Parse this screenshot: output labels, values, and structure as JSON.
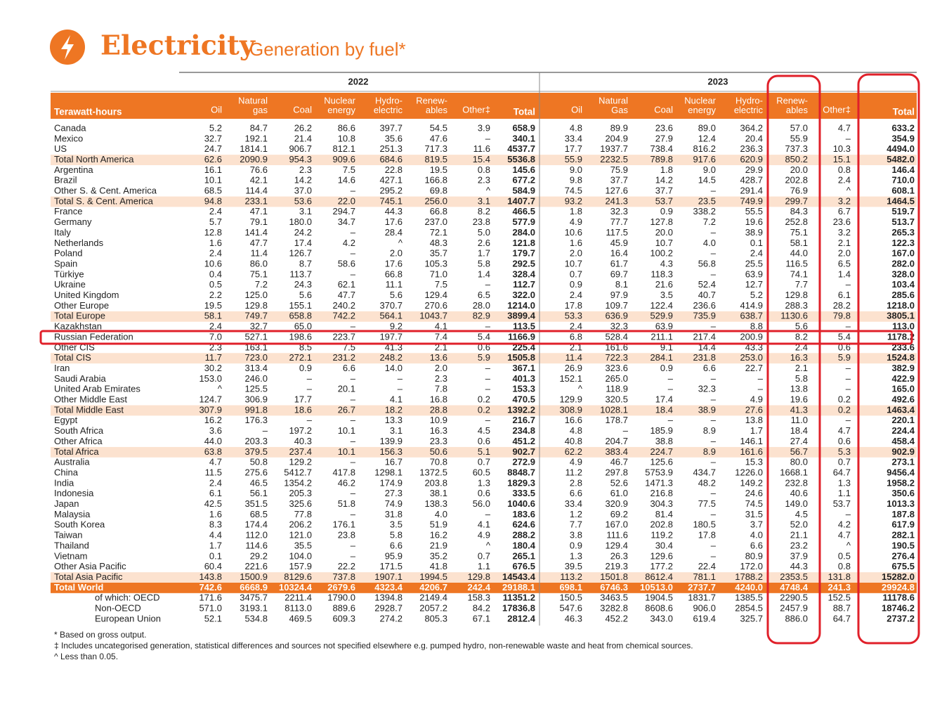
{
  "header": {
    "title": "Electricity",
    "subtitle": "Generation by fuel*"
  },
  "table": {
    "unit_label": "Terawatt-hours",
    "years": [
      "2022",
      "2023"
    ],
    "columns": [
      [
        "Oil"
      ],
      [
        "Natural",
        "gas"
      ],
      [
        "Coal"
      ],
      [
        "Nuclear",
        "energy"
      ],
      [
        "Hydro-",
        "electric"
      ],
      [
        "Renew-",
        "ables"
      ],
      [
        "Other‡"
      ],
      [
        "Total"
      ],
      [
        "Oil"
      ],
      [
        "Natural",
        "Gas"
      ],
      [
        "Coal"
      ],
      [
        "Nuclear",
        "energy"
      ],
      [
        "Hydro-",
        "electric"
      ],
      [
        "Renew-",
        "ables"
      ],
      [
        "Other‡"
      ],
      [
        "Total"
      ]
    ],
    "rows": [
      {
        "label": "Canada",
        "values": [
          "5.2",
          "84.7",
          "26.2",
          "86.6",
          "397.7",
          "54.5",
          "3.9",
          "658.9",
          "4.8",
          "89.9",
          "23.6",
          "89.0",
          "364.2",
          "57.0",
          "4.7",
          "633.2"
        ]
      },
      {
        "label": "Mexico",
        "values": [
          "32.7",
          "192.1",
          "21.4",
          "10.8",
          "35.6",
          "47.6",
          "–",
          "340.1",
          "33.4",
          "204.9",
          "27.9",
          "12.4",
          "20.4",
          "55.9",
          "–",
          "354.9"
        ]
      },
      {
        "label": "US",
        "values": [
          "24.7",
          "1814.1",
          "906.7",
          "812.1",
          "251.3",
          "717.3",
          "11.6",
          "4537.7",
          "17.7",
          "1937.7",
          "738.4",
          "816.2",
          "236.3",
          "737.3",
          "10.3",
          "4494.0"
        ]
      },
      {
        "label": "Total North America",
        "style": "total",
        "values": [
          "62.6",
          "2090.9",
          "954.3",
          "909.6",
          "684.6",
          "819.5",
          "15.4",
          "5536.8",
          "55.9",
          "2232.5",
          "789.8",
          "917.6",
          "620.9",
          "850.2",
          "15.1",
          "5482.0"
        ]
      },
      {
        "label": "Argentina",
        "values": [
          "16.1",
          "76.6",
          "2.3",
          "7.5",
          "22.8",
          "19.5",
          "0.8",
          "145.6",
          "9.0",
          "75.9",
          "1.8",
          "9.0",
          "29.9",
          "20.0",
          "0.8",
          "146.4"
        ]
      },
      {
        "label": "Brazil",
        "values": [
          "10.1",
          "42.1",
          "14.2",
          "14.6",
          "427.1",
          "166.8",
          "2.3",
          "677.2",
          "9.8",
          "37.7",
          "14.2",
          "14.5",
          "428.7",
          "202.8",
          "2.4",
          "710.0"
        ]
      },
      {
        "label": "Other S. & Cent. America",
        "values": [
          "68.5",
          "114.4",
          "37.0",
          "–",
          "295.2",
          "69.8",
          "^",
          "584.9",
          "74.5",
          "127.6",
          "37.7",
          "–",
          "291.4",
          "76.9",
          "^",
          "608.1"
        ]
      },
      {
        "label": "Total S. & Cent. America",
        "style": "total",
        "values": [
          "94.8",
          "233.1",
          "53.6",
          "22.0",
          "745.1",
          "256.0",
          "3.1",
          "1407.7",
          "93.2",
          "241.3",
          "53.7",
          "23.5",
          "749.9",
          "299.7",
          "3.2",
          "1464.5"
        ]
      },
      {
        "label": "France",
        "values": [
          "2.4",
          "47.1",
          "3.1",
          "294.7",
          "44.3",
          "66.8",
          "8.2",
          "466.5",
          "1.8",
          "32.3",
          "0.9",
          "338.2",
          "55.5",
          "84.3",
          "6.7",
          "519.7"
        ]
      },
      {
        "label": "Germany",
        "values": [
          "5.7",
          "79.1",
          "180.0",
          "34.7",
          "17.6",
          "237.0",
          "23.8",
          "577.9",
          "4.9",
          "77.7",
          "127.8",
          "7.2",
          "19.6",
          "252.8",
          "23.6",
          "513.7"
        ]
      },
      {
        "label": "Italy",
        "values": [
          "12.8",
          "141.4",
          "24.2",
          "–",
          "28.4",
          "72.1",
          "5.0",
          "284.0",
          "10.6",
          "117.5",
          "20.0",
          "–",
          "38.9",
          "75.1",
          "3.2",
          "265.3"
        ]
      },
      {
        "label": "Netherlands",
        "values": [
          "1.6",
          "47.7",
          "17.4",
          "4.2",
          "^",
          "48.3",
          "2.6",
          "121.8",
          "1.6",
          "45.9",
          "10.7",
          "4.0",
          "0.1",
          "58.1",
          "2.1",
          "122.3"
        ]
      },
      {
        "label": "Poland",
        "values": [
          "2.4",
          "11.4",
          "126.7",
          "–",
          "2.0",
          "35.7",
          "1.7",
          "179.7",
          "2.0",
          "16.4",
          "100.2",
          "–",
          "2.4",
          "44.0",
          "2.0",
          "167.0"
        ]
      },
      {
        "label": "Spain",
        "values": [
          "10.6",
          "86.0",
          "8.7",
          "58.6",
          "17.6",
          "105.3",
          "5.8",
          "292.5",
          "10.7",
          "61.7",
          "4.3",
          "56.8",
          "25.5",
          "116.5",
          "6.5",
          "282.0"
        ]
      },
      {
        "label": "Türkiye",
        "values": [
          "0.4",
          "75.1",
          "113.7",
          "–",
          "66.8",
          "71.0",
          "1.4",
          "328.4",
          "0.7",
          "69.7",
          "118.3",
          "–",
          "63.9",
          "74.1",
          "1.4",
          "328.0"
        ]
      },
      {
        "label": "Ukraine",
        "values": [
          "0.5",
          "7.2",
          "24.3",
          "62.1",
          "11.1",
          "7.5",
          "–",
          "112.7",
          "0.9",
          "8.1",
          "21.6",
          "52.4",
          "12.7",
          "7.7",
          "–",
          "103.4"
        ]
      },
      {
        "label": "United Kingdom",
        "values": [
          "2.2",
          "125.0",
          "5.6",
          "47.7",
          "5.6",
          "129.4",
          "6.5",
          "322.0",
          "2.4",
          "97.9",
          "3.5",
          "40.7",
          "5.2",
          "129.8",
          "6.1",
          "285.6"
        ]
      },
      {
        "label": "Other Europe",
        "values": [
          "19.5",
          "129.8",
          "155.1",
          "240.2",
          "370.7",
          "270.6",
          "28.0",
          "1214.0",
          "17.8",
          "109.7",
          "122.4",
          "236.6",
          "414.9",
          "288.3",
          "28.2",
          "1218.0"
        ]
      },
      {
        "label": "Total Europe",
        "style": "total",
        "values": [
          "58.1",
          "749.7",
          "658.8",
          "742.2",
          "564.1",
          "1043.7",
          "82.9",
          "3899.4",
          "53.3",
          "636.9",
          "529.9",
          "735.9",
          "638.7",
          "1130.6",
          "79.8",
          "3805.1"
        ]
      },
      {
        "label": "Kazakhstan",
        "values": [
          "2.4",
          "32.7",
          "65.0",
          "–",
          "9.2",
          "4.1",
          "–",
          "113.5",
          "2.4",
          "32.3",
          "63.9",
          "–",
          "8.8",
          "5.6",
          "–",
          "113.0"
        ]
      },
      {
        "label": "Russian Federation",
        "values": [
          "7.0",
          "527.1",
          "198.6",
          "223.7",
          "197.7",
          "7.4",
          "5.4",
          "1166.9",
          "6.8",
          "528.4",
          "211.1",
          "217.4",
          "200.9",
          "8.2",
          "5.4",
          "1178.2"
        ]
      },
      {
        "label": "Other CIS",
        "values": [
          "2.3",
          "163.1",
          "8.5",
          "7.5",
          "41.3",
          "2.1",
          "0.6",
          "225.4",
          "2.1",
          "161.6",
          "9.1",
          "14.4",
          "43.3",
          "2.4",
          "0.6",
          "233.6"
        ]
      },
      {
        "label": "Total CIS",
        "style": "total",
        "values": [
          "11.7",
          "723.0",
          "272.1",
          "231.2",
          "248.2",
          "13.6",
          "5.9",
          "1505.8",
          "11.4",
          "722.3",
          "284.1",
          "231.8",
          "253.0",
          "16.3",
          "5.9",
          "1524.8"
        ]
      },
      {
        "label": "Iran",
        "values": [
          "30.2",
          "313.4",
          "0.9",
          "6.6",
          "14.0",
          "2.0",
          "–",
          "367.1",
          "26.9",
          "323.6",
          "0.9",
          "6.6",
          "22.7",
          "2.1",
          "–",
          "382.9"
        ]
      },
      {
        "label": "Saudi Arabia",
        "values": [
          "153.0",
          "246.0",
          "–",
          "–",
          "–",
          "2.3",
          "–",
          "401.3",
          "152.1",
          "265.0",
          "–",
          "–",
          "–",
          "5.8",
          "–",
          "422.9"
        ]
      },
      {
        "label": "United Arab Emirates",
        "values": [
          "^",
          "125.5",
          "–",
          "20.1",
          "–",
          "7.8",
          "–",
          "153.3",
          "^",
          "118.9",
          "–",
          "32.3",
          "–",
          "13.8",
          "–",
          "165.0"
        ]
      },
      {
        "label": "Other Middle East",
        "values": [
          "124.7",
          "306.9",
          "17.7",
          "–",
          "4.1",
          "16.8",
          "0.2",
          "470.5",
          "129.9",
          "320.5",
          "17.4",
          "–",
          "4.9",
          "19.6",
          "0.2",
          "492.6"
        ]
      },
      {
        "label": "Total Middle East",
        "style": "total",
        "values": [
          "307.9",
          "991.8",
          "18.6",
          "26.7",
          "18.2",
          "28.8",
          "0.2",
          "1392.2",
          "308.9",
          "1028.1",
          "18.4",
          "38.9",
          "27.6",
          "41.3",
          "0.2",
          "1463.4"
        ]
      },
      {
        "label": "Egypt",
        "values": [
          "16.2",
          "176.3",
          "–",
          "–",
          "13.3",
          "10.9",
          "–",
          "216.7",
          "16.6",
          "178.7",
          "–",
          "–",
          "13.8",
          "11.0",
          "–",
          "220.1"
        ]
      },
      {
        "label": "South Africa",
        "values": [
          "3.6",
          "–",
          "197.2",
          "10.1",
          "3.1",
          "16.3",
          "4.5",
          "234.8",
          "4.8",
          "–",
          "185.9",
          "8.9",
          "1.7",
          "18.4",
          "4.7",
          "224.4"
        ]
      },
      {
        "label": "Other Africa",
        "values": [
          "44.0",
          "203.3",
          "40.3",
          "–",
          "139.9",
          "23.3",
          "0.6",
          "451.2",
          "40.8",
          "204.7",
          "38.8",
          "–",
          "146.1",
          "27.4",
          "0.6",
          "458.4"
        ]
      },
      {
        "label": "Total Africa",
        "style": "total",
        "values": [
          "63.8",
          "379.5",
          "237.4",
          "10.1",
          "156.3",
          "50.6",
          "5.1",
          "902.7",
          "62.2",
          "383.4",
          "224.7",
          "8.9",
          "161.6",
          "56.7",
          "5.3",
          "902.9"
        ]
      },
      {
        "label": "Australia",
        "values": [
          "4.7",
          "50.8",
          "129.2",
          "–",
          "16.7",
          "70.8",
          "0.7",
          "272.9",
          "4.9",
          "46.7",
          "125.6",
          "–",
          "15.3",
          "80.0",
          "0.7",
          "273.1"
        ]
      },
      {
        "label": "China",
        "values": [
          "11.5",
          "275.6",
          "5412.7",
          "417.8",
          "1298.1",
          "1372.5",
          "60.5",
          "8848.7",
          "11.2",
          "297.8",
          "5753.9",
          "434.7",
          "1226.0",
          "1668.1",
          "64.7",
          "9456.4"
        ]
      },
      {
        "label": "India",
        "values": [
          "2.4",
          "46.5",
          "1354.2",
          "46.2",
          "174.9",
          "203.8",
          "1.3",
          "1829.3",
          "2.8",
          "52.6",
          "1471.3",
          "48.2",
          "149.2",
          "232.8",
          "1.3",
          "1958.2"
        ]
      },
      {
        "label": "Indonesia",
        "values": [
          "6.1",
          "56.1",
          "205.3",
          "–",
          "27.3",
          "38.1",
          "0.6",
          "333.5",
          "6.6",
          "61.0",
          "216.8",
          "–",
          "24.6",
          "40.6",
          "1.1",
          "350.6"
        ]
      },
      {
        "label": "Japan",
        "values": [
          "42.5",
          "351.5",
          "325.6",
          "51.8",
          "74.9",
          "138.3",
          "56.0",
          "1040.6",
          "33.4",
          "320.9",
          "304.3",
          "77.5",
          "74.5",
          "149.0",
          "53.7",
          "1013.3"
        ]
      },
      {
        "label": "Malaysia",
        "values": [
          "1.6",
          "68.5",
          "77.8",
          "–",
          "31.8",
          "4.0",
          "–",
          "183.6",
          "1.2",
          "69.2",
          "81.4",
          "–",
          "31.5",
          "4.5",
          "–",
          "187.8"
        ]
      },
      {
        "label": "South Korea",
        "values": [
          "8.3",
          "174.4",
          "206.2",
          "176.1",
          "3.5",
          "51.9",
          "4.1",
          "624.6",
          "7.7",
          "167.0",
          "202.8",
          "180.5",
          "3.7",
          "52.0",
          "4.2",
          "617.9"
        ]
      },
      {
        "label": "Taiwan",
        "values": [
          "4.4",
          "112.0",
          "121.0",
          "23.8",
          "5.8",
          "16.2",
          "4.9",
          "288.2",
          "3.8",
          "111.6",
          "119.2",
          "17.8",
          "4.0",
          "21.1",
          "4.7",
          "282.1"
        ]
      },
      {
        "label": "Thailand",
        "values": [
          "1.7",
          "114.6",
          "35.5",
          "–",
          "6.6",
          "21.9",
          "^",
          "180.4",
          "0.9",
          "129.4",
          "30.4",
          "–",
          "6.6",
          "23.2",
          "^",
          "190.5"
        ]
      },
      {
        "label": "Vietnam",
        "values": [
          "0.1",
          "29.2",
          "104.0",
          "–",
          "95.9",
          "35.2",
          "0.7",
          "265.1",
          "1.3",
          "26.3",
          "129.6",
          "–",
          "80.9",
          "37.9",
          "0.5",
          "276.4"
        ]
      },
      {
        "label": "Other Asia Pacific",
        "values": [
          "60.4",
          "221.6",
          "157.9",
          "22.2",
          "171.5",
          "41.8",
          "1.1",
          "676.5",
          "39.5",
          "219.3",
          "177.2",
          "22.4",
          "172.0",
          "44.3",
          "0.8",
          "675.5"
        ]
      },
      {
        "label": "Total Asia Pacific",
        "style": "total",
        "values": [
          "143.8",
          "1500.9",
          "8129.6",
          "737.8",
          "1907.1",
          "1994.5",
          "129.8",
          "14543.4",
          "113.2",
          "1501.8",
          "8612.4",
          "781.1",
          "1788.2",
          "2353.5",
          "131.8",
          "15282.0"
        ]
      },
      {
        "label": "Total World",
        "style": "world",
        "values": [
          "742.6",
          "6668.9",
          "10324.4",
          "2679.6",
          "4323.4",
          "4206.7",
          "242.4",
          "29188.1",
          "698.1",
          "6746.3",
          "10513.0",
          "2737.7",
          "4240.0",
          "4748.4",
          "241.3",
          "29924.8"
        ]
      },
      {
        "label": "of which: OECD",
        "style": "sub",
        "values": [
          "171.6",
          "3475.7",
          "2211.4",
          "1790.0",
          "1394.8",
          "2149.4",
          "158.3",
          "11351.2",
          "150.5",
          "3463.5",
          "1904.5",
          "1831.7",
          "1385.5",
          "2290.5",
          "152.5",
          "11178.6"
        ]
      },
      {
        "label": "Non-OECD",
        "style": "sub",
        "values": [
          "571.0",
          "3193.1",
          "8113.0",
          "889.6",
          "2928.7",
          "2057.2",
          "84.2",
          "17836.8",
          "547.6",
          "3282.8",
          "8608.6",
          "906.0",
          "2854.5",
          "2457.9",
          "88.7",
          "18746.2"
        ]
      },
      {
        "label": "European Union",
        "style": "sub",
        "values": [
          "52.1",
          "534.8",
          "469.5",
          "609.3",
          "274.2",
          "805.3",
          "67.1",
          "2812.4",
          "46.3",
          "452.2",
          "343.0",
          "619.4",
          "325.7",
          "886.0",
          "64.7",
          "2737.2"
        ]
      }
    ]
  },
  "footnotes": [
    "*  Based on gross output.",
    "‡  Includes uncategorised generation, statistical differences and sources not specified elsewhere e.g. pumped hydro, non-renewable waste and heat from chemical sources.",
    "^  Less than 0.05."
  ]
}
